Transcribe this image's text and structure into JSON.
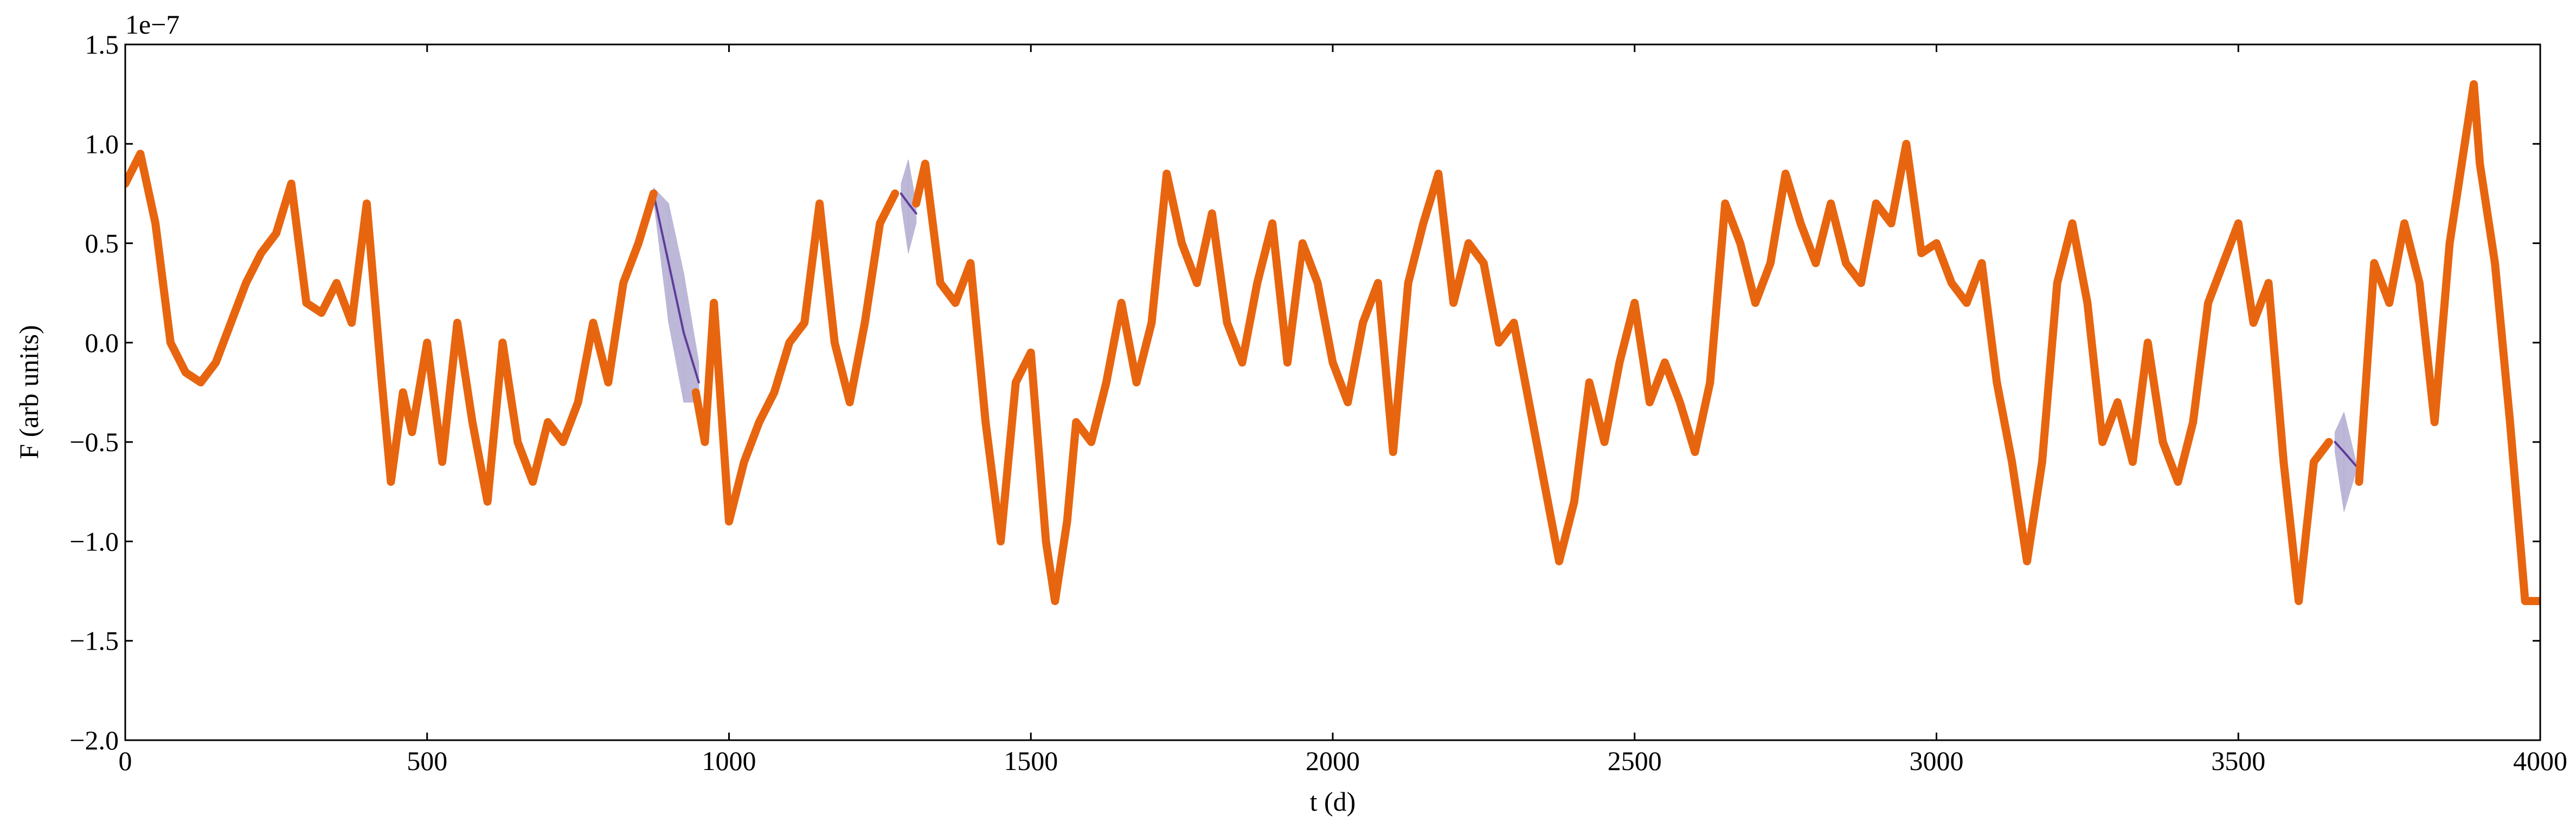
{
  "chart_data": {
    "type": "line",
    "offset_text": "1e−7",
    "xlabel": "t (d)",
    "ylabel": "F (arb units)",
    "xlim": [
      0,
      4000
    ],
    "ylim": [
      -2,
      1.5
    ],
    "xticks": [
      0,
      500,
      1000,
      1500,
      2000,
      2500,
      3000,
      3500,
      4000
    ],
    "yticks": [
      {
        "value": -2,
        "label": "−2.0"
      },
      {
        "value": -1.5,
        "label": "−1.5"
      },
      {
        "value": -1,
        "label": "−1.0"
      },
      {
        "value": -0.5,
        "label": "−0.5"
      },
      {
        "value": 0,
        "label": "0.0"
      },
      0.5,
      {
        "value": 1,
        "label": "1.0"
      },
      1.5
    ],
    "series": [
      {
        "color": "#5e3c99",
        "band_color": "#b2abd2",
        "x": [
          875,
          900,
          925,
          950,
          1000,
          1285,
          1297,
          1310,
          1500,
          3660,
          3675,
          3695
        ],
        "values": [
          0.75,
          0.4,
          0.05,
          -0.2,
          null,
          0.75,
          0.7,
          0.65,
          null,
          -0.5,
          -0.55,
          -0.62
        ],
        "lower": [
          0.72,
          0.1,
          -0.3,
          -0.3,
          null,
          0.7,
          0.45,
          0.6,
          null,
          -0.55,
          -0.85,
          -0.65
        ],
        "upper": [
          0.78,
          0.7,
          0.35,
          -0.1,
          null,
          0.8,
          0.92,
          0.7,
          null,
          -0.45,
          -0.35,
          -0.6
        ]
      },
      {
        "color": "#e8650f",
        "x": [
          0,
          25,
          50,
          75,
          100,
          125,
          150,
          175,
          200,
          225,
          250,
          275,
          300,
          325,
          350,
          375,
          400,
          425,
          440,
          460,
          475,
          500,
          525,
          550,
          575,
          600,
          625,
          650,
          675,
          700,
          725,
          750,
          775,
          800,
          825,
          850,
          875,
          910,
          945,
          960,
          975,
          1000,
          1025,
          1050,
          1075,
          1100,
          1125,
          1150,
          1175,
          1200,
          1225,
          1250,
          1275,
          1297,
          1310,
          1325,
          1350,
          1375,
          1400,
          1425,
          1450,
          1475,
          1500,
          1525,
          1540,
          1560,
          1575,
          1600,
          1625,
          1650,
          1675,
          1700,
          1725,
          1750,
          1775,
          1800,
          1825,
          1850,
          1875,
          1900,
          1925,
          1950,
          1975,
          2000,
          2025,
          2050,
          2075,
          2100,
          2125,
          2150,
          2175,
          2200,
          2225,
          2250,
          2275,
          2300,
          2325,
          2350,
          2375,
          2400,
          2425,
          2450,
          2475,
          2500,
          2525,
          2550,
          2575,
          2600,
          2625,
          2650,
          2675,
          2700,
          2725,
          2750,
          2775,
          2800,
          2825,
          2850,
          2875,
          2900,
          2925,
          2950,
          2975,
          3000,
          3025,
          3050,
          3075,
          3100,
          3125,
          3150,
          3175,
          3200,
          3225,
          3250,
          3275,
          3300,
          3325,
          3350,
          3375,
          3400,
          3425,
          3450,
          3475,
          3500,
          3525,
          3550,
          3575,
          3600,
          3625,
          3650,
          3680,
          3700,
          3725,
          3750,
          3775,
          3800,
          3825,
          3850,
          3875,
          3890,
          3900,
          3925,
          3950,
          3975,
          4000
        ],
        "values": [
          0.8,
          0.95,
          0.6,
          0.0,
          -0.15,
          -0.2,
          -0.1,
          0.1,
          0.3,
          0.45,
          0.55,
          0.8,
          0.2,
          0.15,
          0.3,
          0.1,
          0.7,
          -0.2,
          -0.7,
          -0.25,
          -0.45,
          0.0,
          -0.6,
          0.1,
          -0.4,
          -0.8,
          0.0,
          -0.5,
          -0.7,
          -0.4,
          -0.5,
          -0.3,
          0.1,
          -0.2,
          0.3,
          0.5,
          0.75,
          null,
          -0.25,
          -0.5,
          0.2,
          -0.9,
          -0.6,
          -0.4,
          -0.25,
          0.0,
          0.1,
          0.7,
          0.0,
          -0.3,
          0.1,
          0.6,
          0.75,
          null,
          0.7,
          0.9,
          0.3,
          0.2,
          0.4,
          -0.4,
          -1.0,
          -0.2,
          -0.05,
          -1.0,
          -1.3,
          -0.9,
          -0.4,
          -0.5,
          -0.2,
          0.2,
          -0.2,
          0.1,
          0.85,
          0.5,
          0.3,
          0.65,
          0.1,
          -0.1,
          0.3,
          0.6,
          -0.1,
          0.5,
          0.3,
          -0.1,
          -0.3,
          0.1,
          0.3,
          -0.55,
          0.3,
          0.6,
          0.85,
          0.2,
          0.5,
          0.4,
          0.0,
          0.1,
          -0.3,
          -0.7,
          -1.1,
          -0.8,
          -0.2,
          -0.5,
          -0.1,
          0.2,
          -0.3,
          -0.1,
          -0.3,
          -0.55,
          -0.2,
          0.7,
          0.5,
          0.2,
          0.4,
          0.85,
          0.6,
          0.4,
          0.7,
          0.4,
          0.3,
          0.7,
          0.6,
          1.0,
          0.45,
          0.5,
          0.3,
          0.2,
          0.4,
          -0.2,
          -0.6,
          -1.1,
          -0.6,
          0.3,
          0.6,
          0.2,
          -0.5,
          -0.3,
          -0.6,
          0.0,
          -0.5,
          -0.7,
          -0.4,
          0.2,
          0.4,
          0.6,
          0.1,
          0.3,
          -0.6,
          -1.3,
          -0.6,
          -0.5,
          null,
          -0.7,
          0.4,
          0.2,
          0.6,
          0.3,
          -0.4,
          0.5,
          1.0,
          1.3,
          0.9,
          0.4,
          -0.4,
          -1.3,
          -1.3
        ]
      }
    ]
  }
}
